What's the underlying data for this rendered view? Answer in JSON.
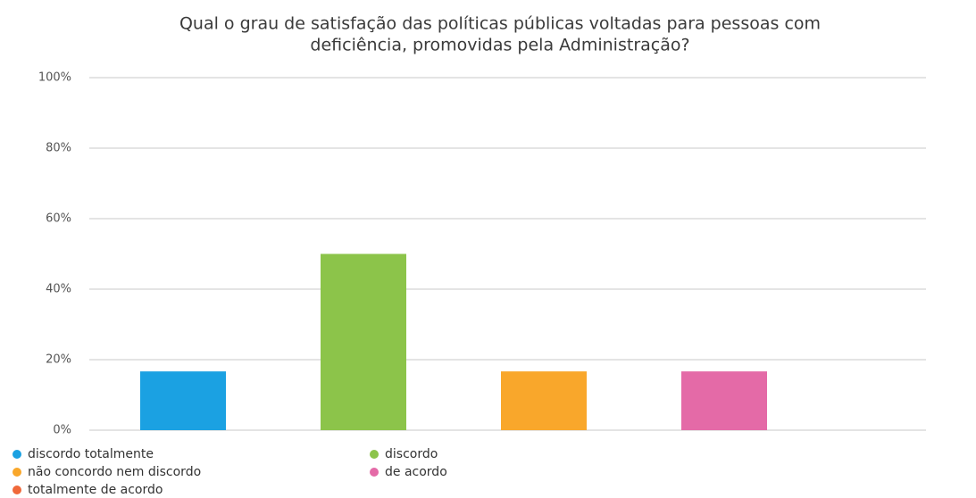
{
  "chart_data": {
    "type": "bar",
    "title": [
      "Qual o grau de satisfação das políticas públicas voltadas para pessoas com",
      "deficiência, promovidas pela Administração?"
    ],
    "categories": [
      "discordo totalmente",
      "discordo",
      "não concordo nem discordo",
      "de acordo",
      "totalmente de acordo"
    ],
    "values": [
      16.67,
      50,
      16.67,
      16.67,
      0
    ],
    "colors": [
      "#1ba1e2",
      "#8cc44a",
      "#f9a72b",
      "#e46aa7",
      "#f0693a"
    ],
    "ylim": [
      0,
      100
    ],
    "yticks": [
      {
        "value": 0,
        "label": "0%"
      },
      {
        "value": 20,
        "label": "20%"
      },
      {
        "value": 40,
        "label": "40%"
      },
      {
        "value": 60,
        "label": "60%"
      },
      {
        "value": 80,
        "label": "80%"
      },
      {
        "value": 100,
        "label": "100%"
      }
    ],
    "grid": true
  }
}
